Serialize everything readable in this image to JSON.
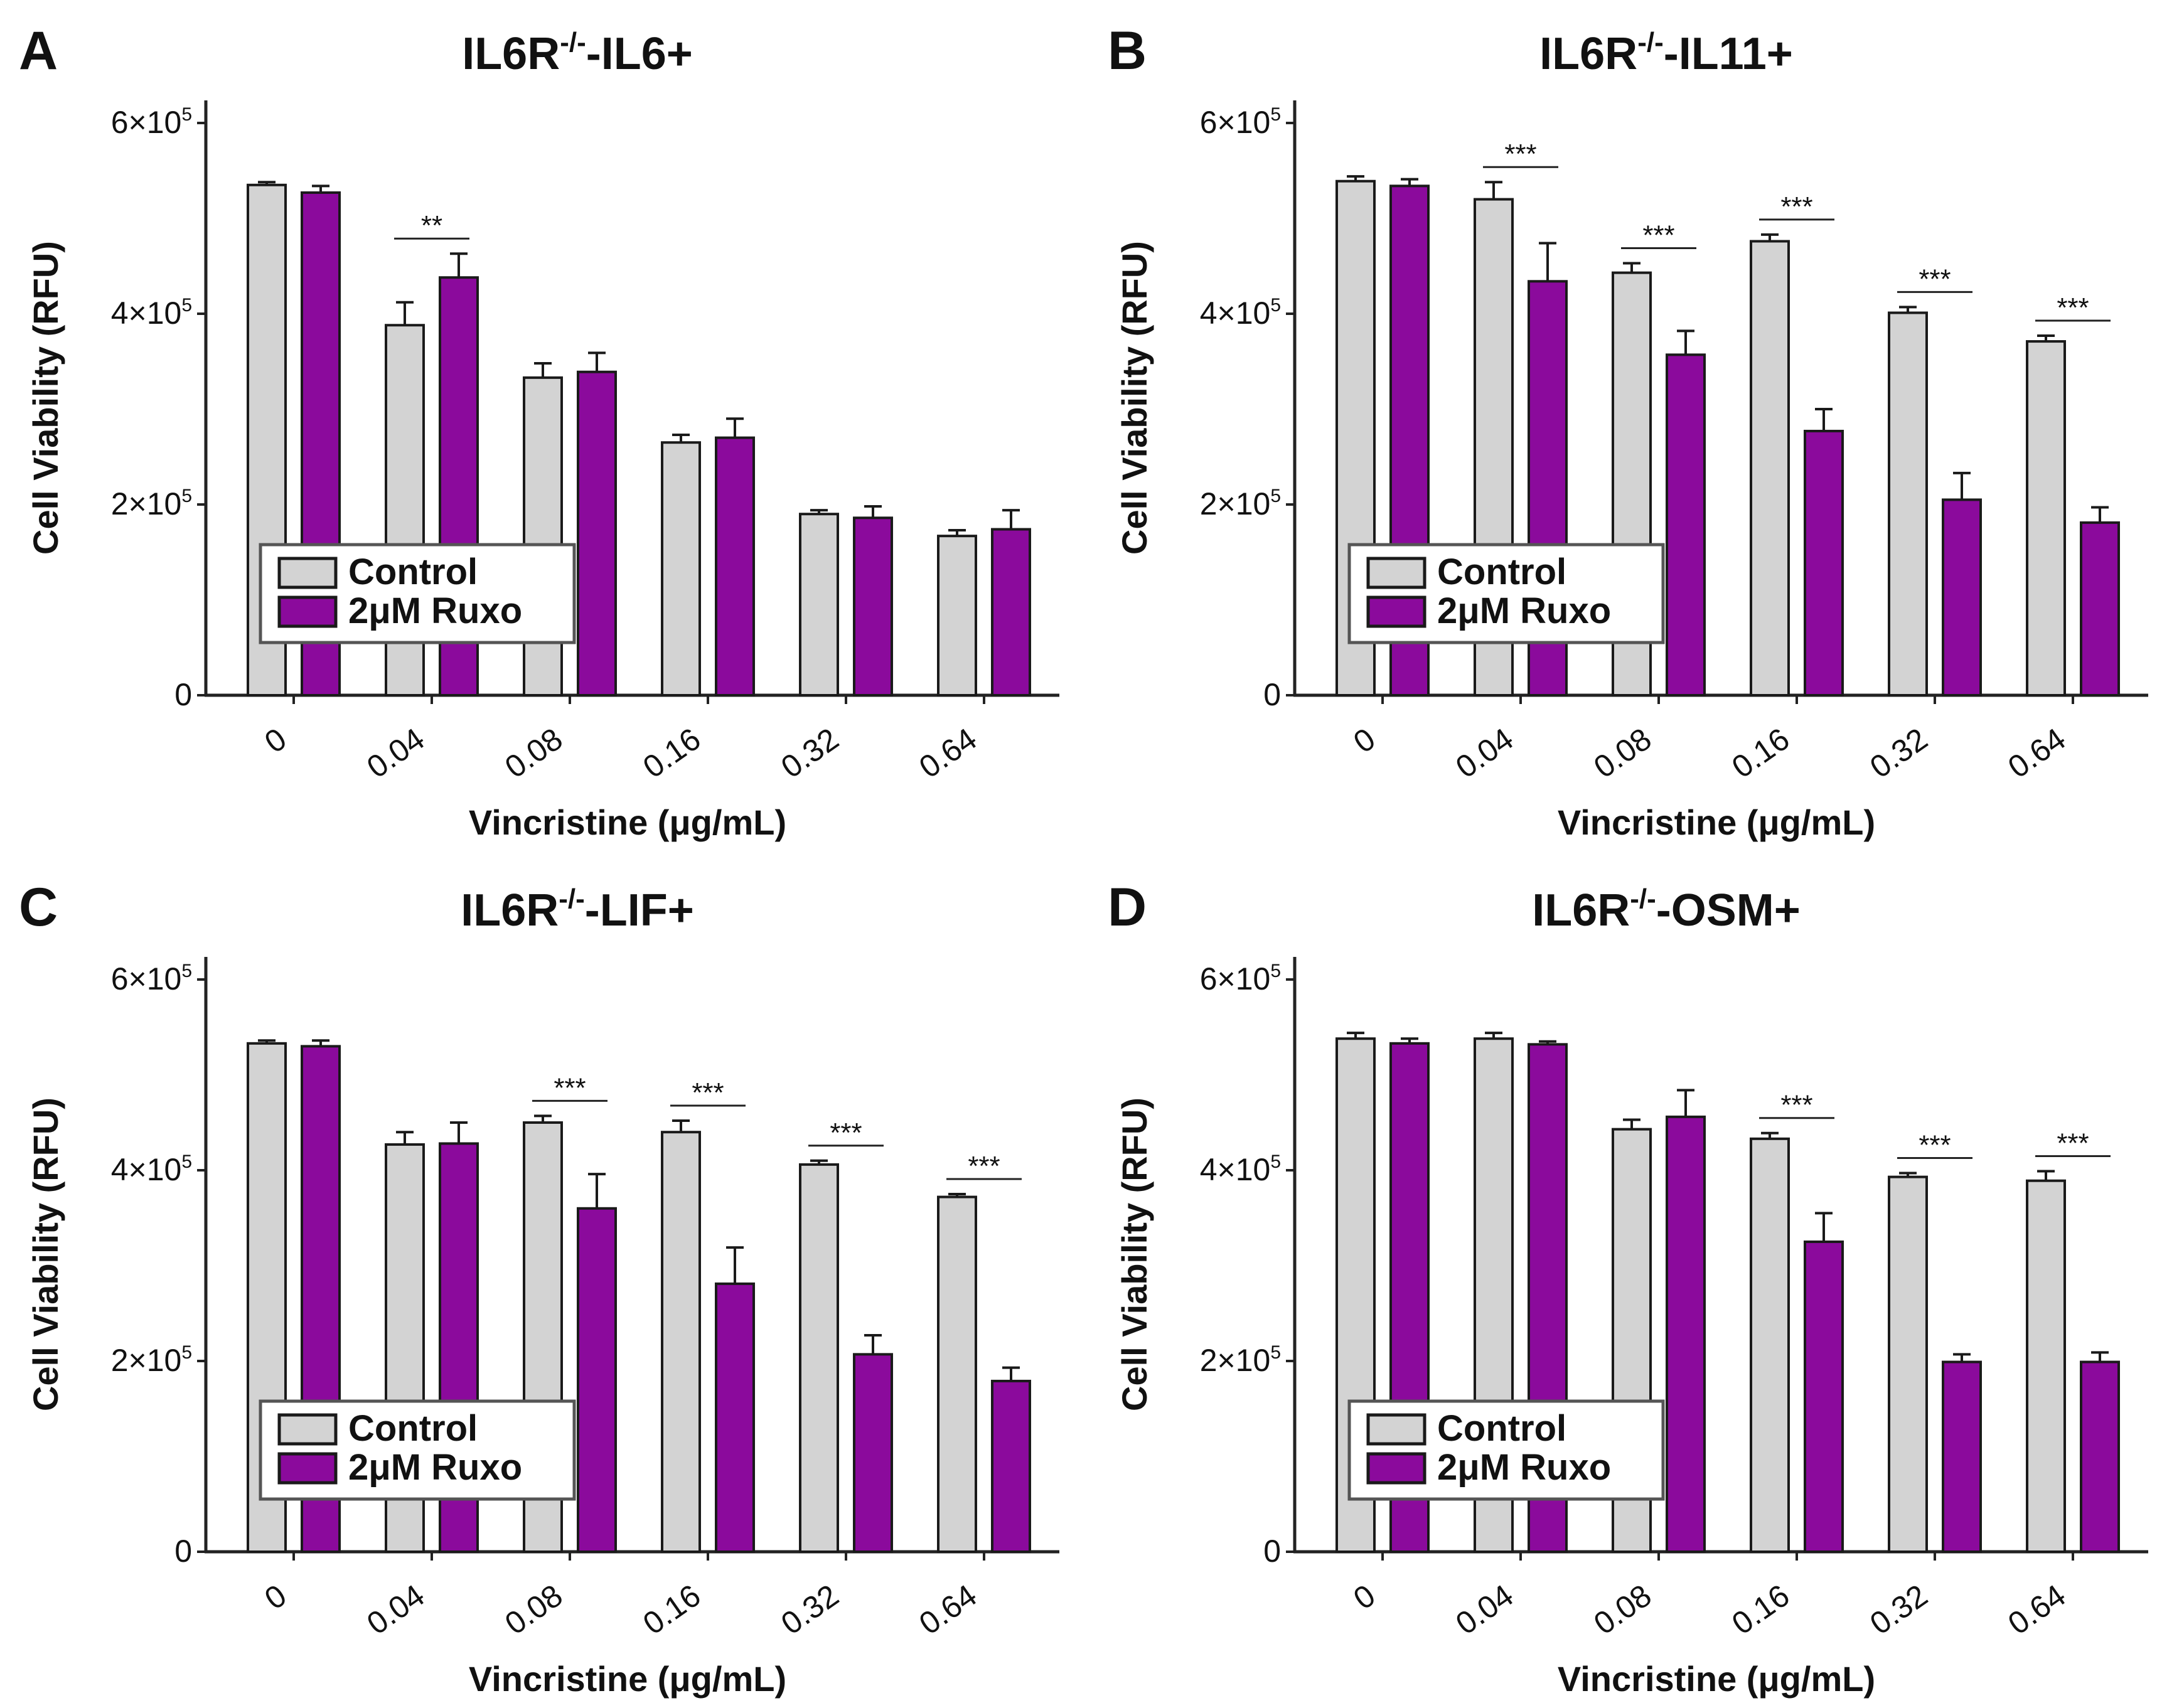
{
  "chart_data": [
    {
      "panel": "A",
      "type": "bar",
      "title": {
        "prefix": "IL6R",
        "superscript": "-/-",
        "suffix": "-IL6+"
      },
      "xlabel": "Vincristine (μg/mL)",
      "ylabel": "Cell Viability (RFU)",
      "categories": [
        "0",
        "0.04",
        "0.08",
        "0.16",
        "0.32",
        "0.64"
      ],
      "ylim": [
        0,
        600000
      ],
      "yticks": [
        {
          "value": 0,
          "mantissa": "0",
          "exponent": ""
        },
        {
          "value": 200000,
          "mantissa": "2×10",
          "exponent": "5"
        },
        {
          "value": 400000,
          "mantissa": "4×10",
          "exponent": "5"
        },
        {
          "value": 600000,
          "mantissa": "6×10",
          "exponent": "5"
        }
      ],
      "series": [
        {
          "name": "Control",
          "color": "#d3d3d3",
          "values": [
            535000,
            388000,
            333000,
            265000,
            190000,
            167000
          ],
          "errors": [
            3000,
            24000,
            15000,
            8000,
            4000,
            6000
          ]
        },
        {
          "name": "2μM Ruxo",
          "color": "#8b0a9c",
          "values": [
            527000,
            438000,
            339000,
            270000,
            186000,
            174000
          ],
          "errors": [
            7000,
            25000,
            20000,
            20000,
            12000,
            20000
          ]
        }
      ],
      "significance": [
        {
          "category": "0.04",
          "label": "**"
        }
      ],
      "legend": {
        "position": "lower-left",
        "entries": [
          "Control",
          "2μM Ruxo"
        ]
      }
    },
    {
      "panel": "B",
      "type": "bar",
      "title": {
        "prefix": "IL6R",
        "superscript": "-/-",
        "suffix": "-IL11+"
      },
      "xlabel": "Vincristine (μg/mL)",
      "ylabel": "Cell Viability (RFU)",
      "categories": [
        "0",
        "0.04",
        "0.08",
        "0.16",
        "0.32",
        "0.64"
      ],
      "ylim": [
        0,
        600000
      ],
      "yticks": [
        {
          "value": 0,
          "mantissa": "0",
          "exponent": ""
        },
        {
          "value": 200000,
          "mantissa": "2×10",
          "exponent": "5"
        },
        {
          "value": 400000,
          "mantissa": "4×10",
          "exponent": "5"
        },
        {
          "value": 600000,
          "mantissa": "6×10",
          "exponent": "5"
        }
      ],
      "series": [
        {
          "name": "Control",
          "color": "#d3d3d3",
          "values": [
            539000,
            520000,
            443000,
            476000,
            401000,
            371000
          ],
          "errors": [
            5000,
            18000,
            10000,
            7000,
            6000,
            6000
          ]
        },
        {
          "name": "2μM Ruxo",
          "color": "#8b0a9c",
          "values": [
            534000,
            434000,
            357000,
            277000,
            205000,
            181000
          ],
          "errors": [
            7000,
            40000,
            25000,
            23000,
            28000,
            16000
          ]
        }
      ],
      "significance": [
        {
          "category": "0.04",
          "label": "***"
        },
        {
          "category": "0.08",
          "label": "***"
        },
        {
          "category": "0.16",
          "label": "***"
        },
        {
          "category": "0.32",
          "label": "***"
        },
        {
          "category": "0.64",
          "label": "***"
        }
      ],
      "legend": {
        "position": "lower-left",
        "entries": [
          "Control",
          "2μM Ruxo"
        ]
      }
    },
    {
      "panel": "C",
      "type": "bar",
      "title": {
        "prefix": "IL6R",
        "superscript": "-/-",
        "suffix": "-LIF+"
      },
      "xlabel": "Vincristine (μg/mL)",
      "ylabel": "Cell Viability (RFU)",
      "categories": [
        "0",
        "0.04",
        "0.08",
        "0.16",
        "0.32",
        "0.64"
      ],
      "ylim": [
        0,
        600000
      ],
      "yticks": [
        {
          "value": 0,
          "mantissa": "0",
          "exponent": ""
        },
        {
          "value": 200000,
          "mantissa": "2×10",
          "exponent": "5"
        },
        {
          "value": 400000,
          "mantissa": "4×10",
          "exponent": "5"
        },
        {
          "value": 600000,
          "mantissa": "6×10",
          "exponent": "5"
        }
      ],
      "series": [
        {
          "name": "Control",
          "color": "#d3d3d3",
          "values": [
            533000,
            427000,
            450000,
            440000,
            406000,
            372000
          ],
          "errors": [
            3000,
            13000,
            7000,
            12000,
            4000,
            3000
          ]
        },
        {
          "name": "2μM Ruxo",
          "color": "#8b0a9c",
          "values": [
            530000,
            428000,
            360000,
            281000,
            207000,
            179000
          ],
          "errors": [
            6000,
            22000,
            36000,
            38000,
            20000,
            14000
          ]
        }
      ],
      "significance": [
        {
          "category": "0.08",
          "label": "***"
        },
        {
          "category": "0.16",
          "label": "***"
        },
        {
          "category": "0.32",
          "label": "***"
        },
        {
          "category": "0.64",
          "label": "***"
        }
      ],
      "legend": {
        "position": "lower-left",
        "entries": [
          "Control",
          "2μM Ruxo"
        ]
      }
    },
    {
      "panel": "D",
      "type": "bar",
      "title": {
        "prefix": "IL6R",
        "superscript": "-/-",
        "suffix": "-OSM+"
      },
      "xlabel": "Vincristine (μg/mL)",
      "ylabel": "Cell Viability (RFU)",
      "categories": [
        "0",
        "0.04",
        "0.08",
        "0.16",
        "0.32",
        "0.64"
      ],
      "ylim": [
        0,
        600000
      ],
      "yticks": [
        {
          "value": 0,
          "mantissa": "0",
          "exponent": ""
        },
        {
          "value": 200000,
          "mantissa": "2×10",
          "exponent": "5"
        },
        {
          "value": 400000,
          "mantissa": "4×10",
          "exponent": "5"
        },
        {
          "value": 600000,
          "mantissa": "6×10",
          "exponent": "5"
        }
      ],
      "series": [
        {
          "name": "Control",
          "color": "#d3d3d3",
          "values": [
            538000,
            538000,
            443000,
            433000,
            393000,
            389000
          ],
          "errors": [
            6000,
            6000,
            10000,
            6000,
            4000,
            10000
          ]
        },
        {
          "name": "2μM Ruxo",
          "color": "#8b0a9c",
          "values": [
            533000,
            532000,
            456000,
            325000,
            199000,
            199000
          ],
          "errors": [
            5000,
            3000,
            28000,
            30000,
            8000,
            10000
          ]
        }
      ],
      "significance": [
        {
          "category": "0.16",
          "label": "***"
        },
        {
          "category": "0.32",
          "label": "***"
        },
        {
          "category": "0.64",
          "label": "***"
        }
      ],
      "legend": {
        "position": "lower-left",
        "entries": [
          "Control",
          "2μM Ruxo"
        ]
      }
    }
  ]
}
